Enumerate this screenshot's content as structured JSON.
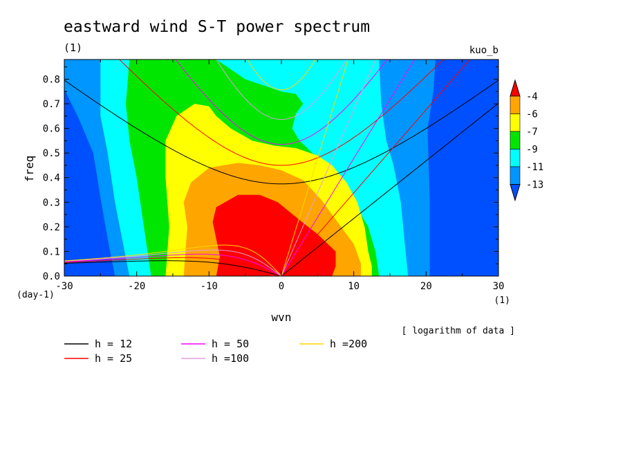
{
  "chart_data": {
    "type": "heatmap",
    "title": "eastward wind S-T power spectrum",
    "subtitle_left": "(1)",
    "subtitle_right": "kuo_b",
    "xlabel": "wvn",
    "ylabel": "freq",
    "x_unit": "(1)",
    "y_unit": "(day-1)",
    "xlim": [
      -30,
      30
    ],
    "ylim": [
      0,
      0.88
    ],
    "x_ticks": [
      -30,
      -20,
      -10,
      0,
      10,
      20,
      30
    ],
    "x_tick_labels": [
      "-30",
      "-20",
      "-10",
      "0",
      "10",
      "20",
      "30"
    ],
    "y_ticks": [
      0,
      0.1,
      0.2,
      0.3,
      0.4,
      0.5,
      0.6,
      0.7,
      0.8
    ],
    "y_tick_labels": [
      "0.0",
      "0.1",
      "0.2",
      "0.3",
      "0.4",
      "0.5",
      "0.6",
      "0.7",
      "0.8"
    ],
    "note": "[ logarithm of data ]",
    "colorbar": {
      "levels": [
        "-4",
        "-6",
        "-7",
        "-9",
        "-11",
        "-13"
      ],
      "colors": [
        "#ff0000",
        "#ffa500",
        "#ffff00",
        "#00e600",
        "#00ffff",
        "#0096ff",
        "#0050ff"
      ]
    },
    "contour_regions": [
      {
        "level": "below -13",
        "color": "#0050ff",
        "polygons": [
          [
            [
              -30,
              0
            ],
            [
              30,
              0
            ],
            [
              30,
              0.88
            ],
            [
              -30,
              0.88
            ]
          ]
        ]
      },
      {
        "level": "-13 to -11",
        "color": "#0096ff",
        "polygons": [
          [
            [
              -30,
              0.88
            ],
            [
              -30,
              0.76
            ],
            [
              -28,
              0.64
            ],
            [
              -26,
              0.5
            ],
            [
              -25,
              0.32
            ],
            [
              -24,
              0.15
            ],
            [
              -23,
              0
            ],
            [
              20.5,
              0
            ],
            [
              20.5,
              0.3
            ],
            [
              20.2,
              0.6
            ],
            [
              21,
              0.75
            ],
            [
              21.3,
              0.88
            ]
          ]
        ]
      },
      {
        "level": "-11 to -9",
        "color": "#00ffff",
        "polygons": [
          [
            [
              -25,
              0.88
            ],
            [
              -25,
              0.65
            ],
            [
              -24,
              0.5
            ],
            [
              -23,
              0.3
            ],
            [
              -22,
              0.15
            ],
            [
              -21,
              0
            ],
            [
              17.5,
              0
            ],
            [
              17,
              0.15
            ],
            [
              16.5,
              0.3
            ],
            [
              15.5,
              0.45
            ],
            [
              14.5,
              0.55
            ],
            [
              13.8,
              0.7
            ],
            [
              13.5,
              0.88
            ]
          ]
        ]
      },
      {
        "level": "-9 to -7",
        "color": "#00e600",
        "polygons": [
          [
            [
              -21,
              0.88
            ],
            [
              -21.5,
              0.7
            ],
            [
              -21,
              0.55
            ],
            [
              -20,
              0.4
            ],
            [
              -19,
              0.2
            ],
            [
              -18,
              0
            ],
            [
              13.5,
              0
            ],
            [
              13,
              0.1
            ],
            [
              12,
              0.2
            ],
            [
              10,
              0.3
            ],
            [
              7.5,
              0.4
            ],
            [
              5,
              0.48
            ],
            [
              2.5,
              0.55
            ],
            [
              1.5,
              0.6
            ],
            [
              2,
              0.66
            ],
            [
              3,
              0.7
            ],
            [
              2,
              0.74
            ],
            [
              0,
              0.75
            ],
            [
              -5,
              0.8
            ],
            [
              -8,
              0.86
            ],
            [
              -9,
              0.88
            ]
          ]
        ]
      },
      {
        "level": "-7 to -6",
        "color": "#ffff00",
        "polygons": [
          [
            [
              -16,
              0
            ],
            [
              -15.5,
              0.2
            ],
            [
              -16,
              0.4
            ],
            [
              -16,
              0.55
            ],
            [
              -14.5,
              0.65
            ],
            [
              -12,
              0.7
            ],
            [
              -10,
              0.69
            ],
            [
              -9,
              0.65
            ],
            [
              -7,
              0.6
            ],
            [
              -4,
              0.55
            ],
            [
              -1,
              0.53
            ],
            [
              2,
              0.52
            ],
            [
              5,
              0.49
            ],
            [
              7,
              0.45
            ],
            [
              9,
              0.38
            ],
            [
              10.5,
              0.3
            ],
            [
              11.5,
              0.2
            ],
            [
              12,
              0.1
            ],
            [
              12.5,
              0.04
            ],
            [
              12.5,
              0
            ]
          ]
        ]
      },
      {
        "level": "-6 to -4",
        "color": "#ffa500",
        "polygons": [
          [
            [
              -13.5,
              0
            ],
            [
              -13,
              0.2
            ],
            [
              -13.5,
              0.3
            ],
            [
              -12.5,
              0.38
            ],
            [
              -10,
              0.44
            ],
            [
              -6,
              0.46
            ],
            [
              -3,
              0.45
            ],
            [
              0,
              0.43
            ],
            [
              3,
              0.39
            ],
            [
              5.5,
              0.31
            ],
            [
              8,
              0.21
            ],
            [
              10,
              0.13
            ],
            [
              11,
              0.05
            ],
            [
              11,
              0
            ]
          ]
        ]
      },
      {
        "level": "above -4",
        "color": "#ff0000",
        "polygons": [
          [
            [
              -9,
              0
            ],
            [
              -8.5,
              0.08
            ],
            [
              -9,
              0.15
            ],
            [
              -9.5,
              0.22
            ],
            [
              -9,
              0.28
            ],
            [
              -6,
              0.33
            ],
            [
              -3,
              0.33
            ],
            [
              -0.5,
              0.3
            ],
            [
              2,
              0.24
            ],
            [
              5,
              0.17
            ],
            [
              7.5,
              0.1
            ],
            [
              7.5,
              0.04
            ],
            [
              7,
              0
            ]
          ]
        ]
      }
    ],
    "series": [
      {
        "name": "h = 12",
        "color": "#000000",
        "h": 12
      },
      {
        "name": "h = 25",
        "color": "#ff0000",
        "h": 25
      },
      {
        "name": "h = 50",
        "color": "#ff00ff",
        "h": 50
      },
      {
        "name": "h =100",
        "color": "#dda0dd",
        "h": 100
      },
      {
        "name": "h =200",
        "color": "#ffd700",
        "h": 200
      }
    ],
    "legend_position": "bottom-left"
  }
}
